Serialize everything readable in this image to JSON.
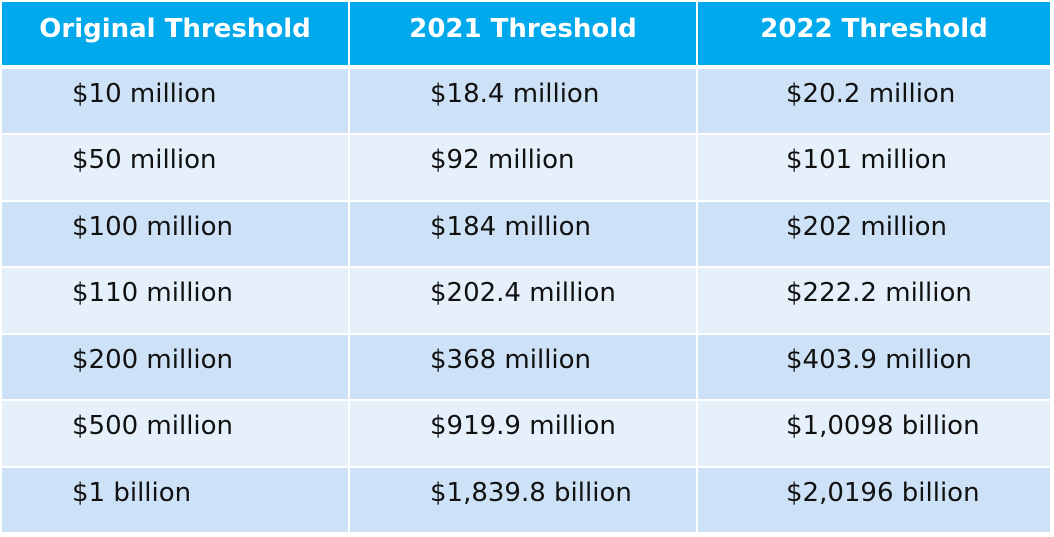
{
  "table": {
    "headers": [
      "Original Threshold",
      "2021 Threshold",
      "2022 Threshold"
    ],
    "rows": [
      [
        "$10 million",
        "$18.4 million",
        "$20.2 million"
      ],
      [
        "$50 million",
        "$92 million",
        "$101 million"
      ],
      [
        "$100 million",
        "$184 million",
        "$202 million"
      ],
      [
        "$110 million",
        "$202.4 million",
        "$222.2 million"
      ],
      [
        "$200 million",
        "$368 million",
        "$403.9 million"
      ],
      [
        "$500 million",
        "$919.9 million",
        "$1,0098 billion"
      ],
      [
        "$1 billion",
        "$1,839.8 billion",
        "$2,0196 billion"
      ]
    ]
  },
  "colors": {
    "header_bg": "#00a9ec",
    "row_dark": "#cde2f7",
    "row_light": "#e6f0fb"
  }
}
